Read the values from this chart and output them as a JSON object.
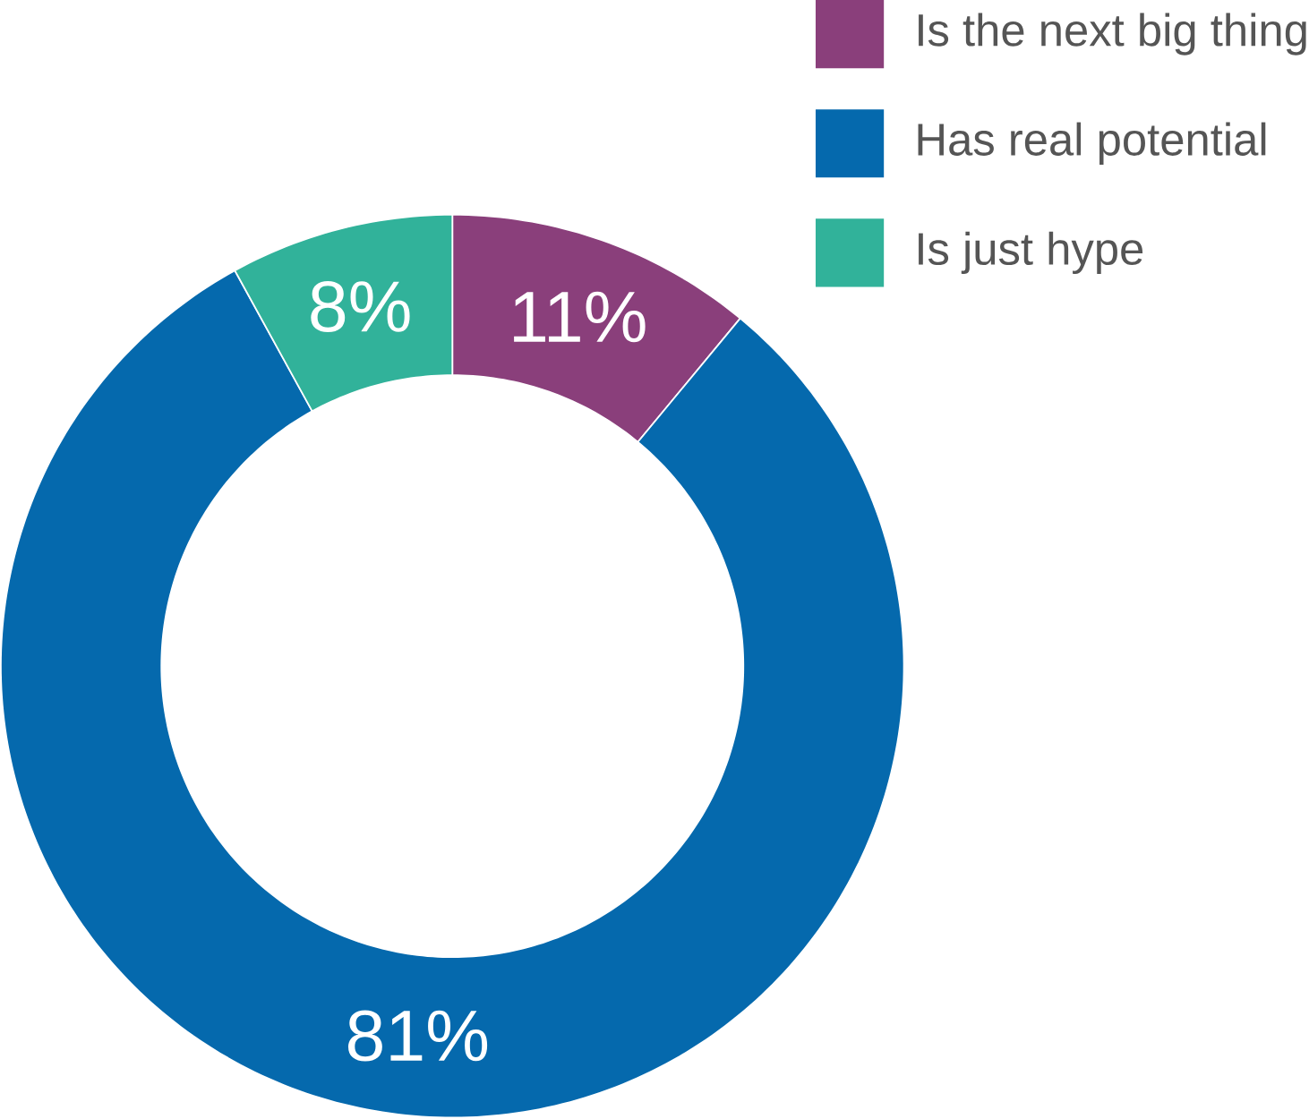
{
  "chart_data": {
    "type": "donut",
    "categories": [
      "Is the next big thing",
      "Has real potential",
      "Is just hype"
    ],
    "values": [
      11,
      81,
      8
    ],
    "colors": [
      "#8a3f7b",
      "#0569ad",
      "#31b29a"
    ],
    "value_labels": [
      "11%",
      "81%",
      "8%"
    ],
    "legend": "top right"
  }
}
